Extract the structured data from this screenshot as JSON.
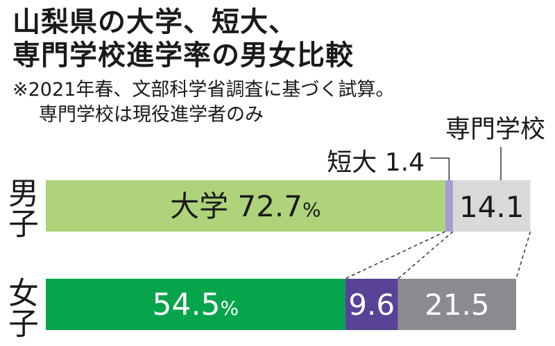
{
  "title_line1": "山梨県の大学、短大、",
  "title_line2": "専門学校進学率の男女比較",
  "note_line1": "※2021年春、文部科学省調査に基づく試算。",
  "note_line2": "専門学校は現役進学者のみ",
  "colors": {
    "male_univ": "#aed37a",
    "male_junior": "#a79bd1",
    "male_vocational": "#d9d9dc",
    "female_univ": "#06a44b",
    "female_junior": "#574296",
    "female_vocational": "#8a8b8e"
  },
  "chart_data": {
    "type": "bar",
    "orientation": "horizontal-stacked",
    "categories": [
      "男子",
      "女子"
    ],
    "series": [
      {
        "name": "大学",
        "values": [
          72.7,
          54.5
        ]
      },
      {
        "name": "短大",
        "values": [
          1.4,
          9.6
        ]
      },
      {
        "name": "専門学校",
        "values": [
          14.1,
          21.5
        ]
      }
    ],
    "labels": {
      "male_univ_name": "大学",
      "male_univ_value": "72.7",
      "male_junior_callout": "短大 1.4",
      "male_vocational_callout": "専門学校",
      "male_vocational_value": "14.1",
      "female_univ_value": "54.5",
      "female_junior_value": "9.6",
      "female_vocational_value": "21.5",
      "percent_sign": "%"
    }
  }
}
